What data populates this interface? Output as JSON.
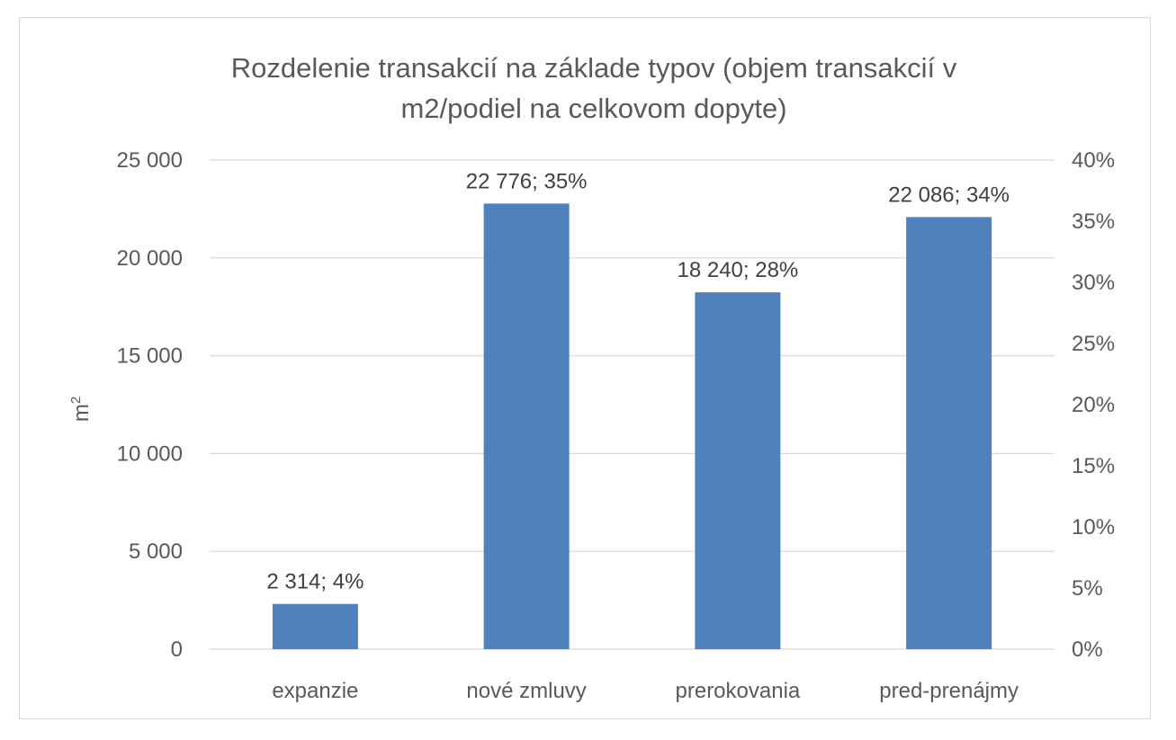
{
  "chart_data": {
    "type": "bar",
    "title_lines": [
      "Rozdelenie transakcií na základe typov (objem transakcií v",
      "m2/podiel na celkovom dopyte)"
    ],
    "ylabel": "m",
    "ylabel_sup": "2",
    "categories": [
      "expanzie",
      "nové zmluvy",
      "prerokovania",
      "pred-prenájmy"
    ],
    "values": [
      2314,
      22776,
      18240,
      22086
    ],
    "data_labels": [
      "2 314; 4%",
      "22 776; 35%",
      "18 240; 28%",
      "22 086; 34%"
    ],
    "ylim": [
      0,
      25000
    ],
    "y_ticks": [
      0,
      5000,
      10000,
      15000,
      20000,
      25000
    ],
    "y_tick_labels": [
      "0",
      "5 000",
      "10 000",
      "15 000",
      "20 000",
      "25 000"
    ],
    "y2lim": [
      0,
      40
    ],
    "y2_ticks": [
      0,
      5,
      10,
      15,
      20,
      25,
      30,
      35,
      40
    ],
    "y2_tick_labels": [
      "0%",
      "5%",
      "10%",
      "15%",
      "20%",
      "25%",
      "30%",
      "35%",
      "40%"
    ],
    "grid": true,
    "bar_color": "#4f81bd"
  }
}
